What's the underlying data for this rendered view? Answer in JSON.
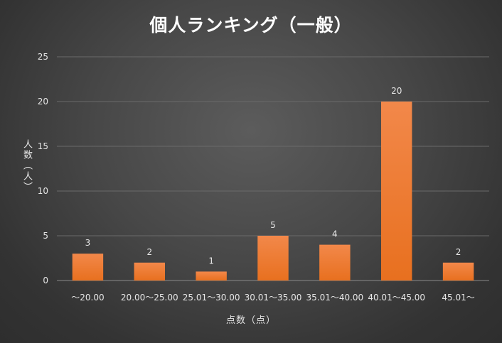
{
  "chart_data": {
    "type": "bar",
    "title": "個人ランキング（一般）",
    "xlabel": "点数（点）",
    "ylabel": "人数（人）",
    "categories": [
      "～20.00",
      "20.00～25.00",
      "25.01～30.00",
      "30.01～35.00",
      "35.01～40.00",
      "40.01～45.00",
      "45.01～"
    ],
    "values": [
      3,
      2,
      1,
      5,
      4,
      20,
      2
    ],
    "ylim": [
      0,
      25
    ],
    "yticks": [
      0,
      5,
      10,
      15,
      20,
      25
    ],
    "grid": true,
    "legend": "none",
    "data_labels": true,
    "colors": {
      "bar_top": "#f2884a",
      "bar_bottom": "#e8701f",
      "grid": "#6a6a6a",
      "axis": "#8a8a8a",
      "text": "#e6e6e6"
    }
  }
}
